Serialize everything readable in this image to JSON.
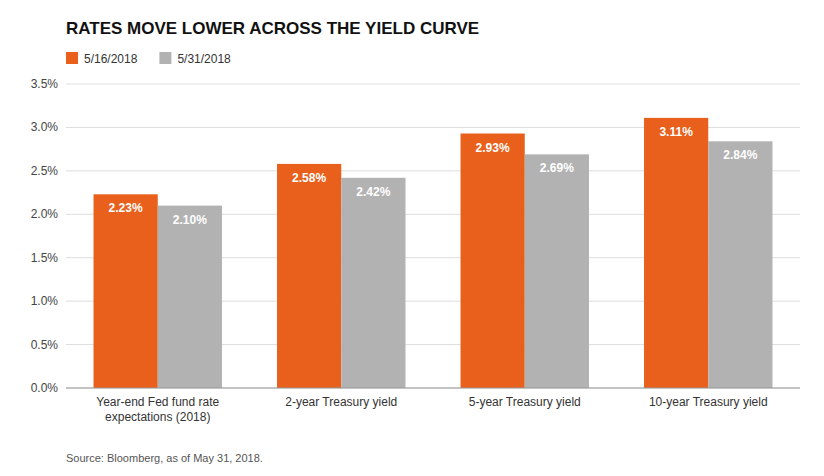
{
  "chart_data": {
    "type": "bar",
    "title": "RATES MOVE LOWER ACROSS THE YIELD CURVE",
    "categories": [
      "Year-end Fed fund rate\nexpectations (2018)",
      "2-year Treasury yield",
      "5-year Treasury yield",
      "10-year Treasury yield"
    ],
    "series": [
      {
        "name": "5/16/2018",
        "color": "#E8601C",
        "values": [
          2.23,
          2.58,
          2.93,
          3.11
        ],
        "value_labels": [
          "2.23%",
          "2.58%",
          "2.93%",
          "3.11%"
        ]
      },
      {
        "name": "5/31/2018",
        "color": "#B2B2B2",
        "values": [
          2.1,
          2.42,
          2.69,
          2.84
        ],
        "value_labels": [
          "2.10%",
          "2.42%",
          "2.69%",
          "2.84%"
        ]
      }
    ],
    "ylim": [
      0,
      3.5
    ],
    "yticks": [
      {
        "value": 0.0,
        "label": "0.0%"
      },
      {
        "value": 0.5,
        "label": "0.5%"
      },
      {
        "value": 1.0,
        "label": "1.0%"
      },
      {
        "value": 1.5,
        "label": "1.5%"
      },
      {
        "value": 2.0,
        "label": "2.0%"
      },
      {
        "value": 2.5,
        "label": "2.5%"
      },
      {
        "value": 3.0,
        "label": "3.0%"
      },
      {
        "value": 3.5,
        "label": "3.5%"
      }
    ],
    "grid": true,
    "legend": "upper left",
    "data_labels": true,
    "annotations": [
      "Source: Bloomberg, as of May 31, 2018."
    ]
  }
}
